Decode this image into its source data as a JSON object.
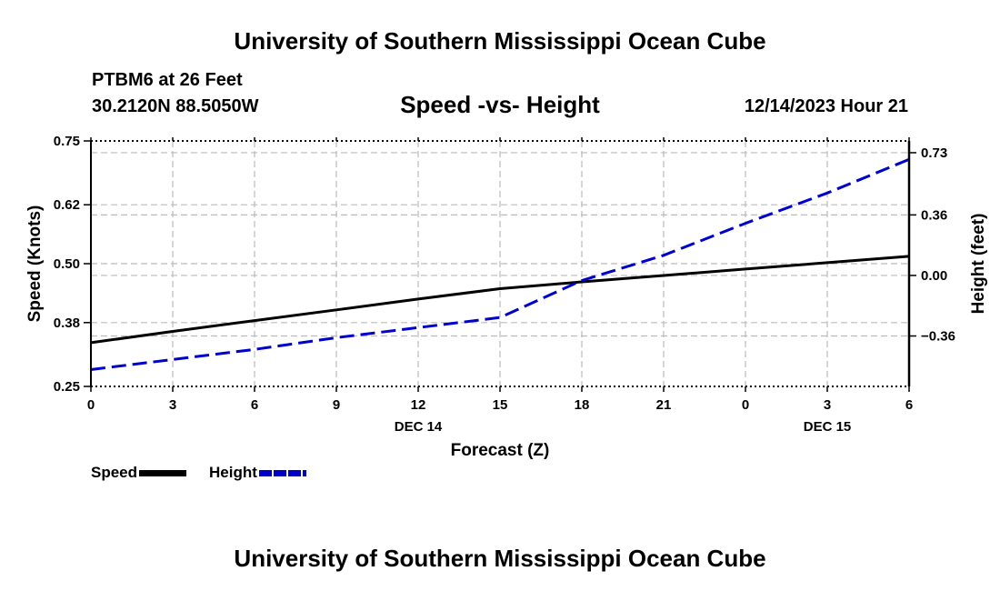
{
  "header": {
    "title": "University of Southern Mississippi Ocean Cube",
    "station_line1": "PTBM6 at 26 Feet",
    "station_line2": "30.2120N  88.5050W",
    "chart_title": "Speed -vs- Height",
    "date": "12/14/2023 Hour 21"
  },
  "footer": {
    "title": "University of Southern Mississippi Ocean Cube"
  },
  "legend": {
    "speed_label": "Speed",
    "height_label": "Height"
  },
  "colors": {
    "speed": "#000000",
    "height": "#0000cc",
    "grid": "#bbbbbb"
  },
  "chart_data": {
    "type": "line",
    "title": "Speed -vs- Height",
    "xlabel": "Forecast (Z)",
    "ylabel": "Speed (Knots)",
    "y2label": "Height (feet)",
    "x_ticks": [
      "0",
      "3",
      "6",
      "9",
      "12",
      "15",
      "18",
      "21",
      "0",
      "3",
      "6"
    ],
    "x_day_labels": [
      {
        "tick_index": 4,
        "label": "DEC 14"
      },
      {
        "tick_index": 9,
        "label": "DEC 15"
      }
    ],
    "y_ticks": [
      "0.75",
      "0.62",
      "0.50",
      "0.38",
      "0.25"
    ],
    "y2_ticks": [
      "0.73",
      "0.36",
      "0.00",
      "−0.36"
    ],
    "ylim": [
      0.25,
      0.75
    ],
    "y2lim": [
      -0.66,
      0.8
    ],
    "series": [
      {
        "name": "Speed",
        "axis": "left",
        "x": [
          0,
          3,
          6,
          9,
          12,
          15,
          18,
          21,
          24,
          27,
          30
        ],
        "values": [
          0.339,
          0.362,
          0.384,
          0.406,
          0.428,
          0.449,
          0.463,
          0.476,
          0.489,
          0.502,
          0.515
        ]
      },
      {
        "name": "Height",
        "axis": "right",
        "x": [
          0,
          3,
          6,
          9,
          12,
          15,
          18,
          21,
          24,
          27,
          30
        ],
        "values": [
          -0.56,
          -0.5,
          -0.44,
          -0.37,
          -0.31,
          -0.25,
          -0.03,
          0.12,
          0.31,
          0.49,
          0.69
        ]
      }
    ]
  }
}
